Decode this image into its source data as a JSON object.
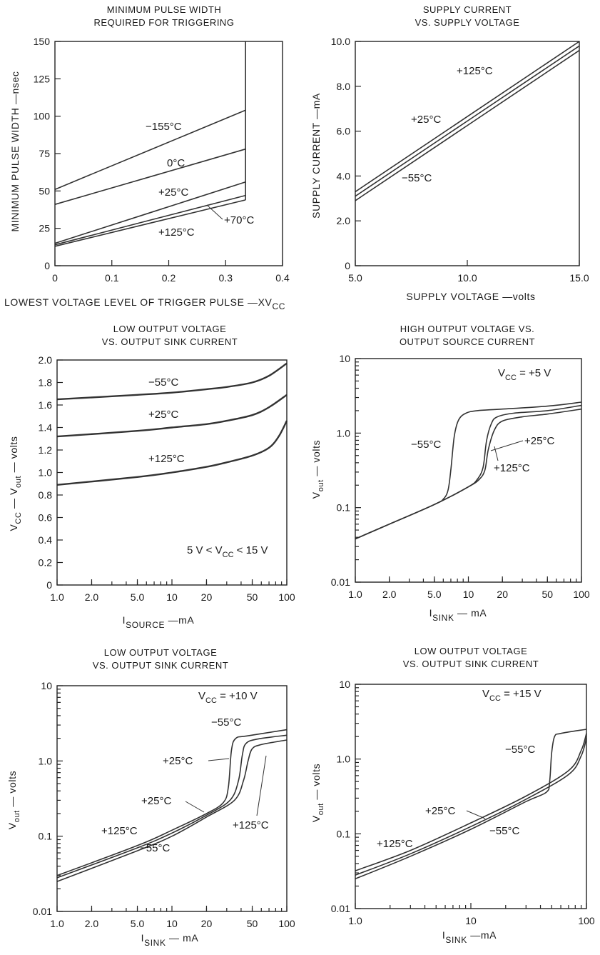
{
  "chart_data": [
    {
      "id": "c1",
      "type": "line",
      "title_lines": [
        "MINIMUM PULSE WIDTH",
        "REQUIRED FOR TRIGGERING"
      ],
      "ylabel": "MINIMUM PULSE WIDTH —nsec",
      "xlabel": {
        "main": "LOWEST VOLTAGE LEVEL OF TRIGGER PULSE —XV",
        "sub": "CC"
      },
      "xscale": "linear",
      "yscale": "linear",
      "xlim": [
        0,
        0.4
      ],
      "ylim": [
        0,
        150
      ],
      "xticks": [
        0,
        0.1,
        0.2,
        0.3,
        0.4
      ],
      "xtick_labels": [
        "0",
        "0.1",
        "0.2",
        "0.3",
        "0.4"
      ],
      "yticks": [
        0,
        25,
        50,
        75,
        100,
        125,
        150
      ],
      "ytick_labels": [
        "0",
        "25",
        "50",
        "75",
        "100",
        "125",
        "150"
      ],
      "cutoff_x": 0.335,
      "series": [
        {
          "name": "−155°C",
          "x": [
            0,
            0.335
          ],
          "y": [
            51,
            104
          ]
        },
        {
          "name": "0°C",
          "x": [
            0,
            0.335
          ],
          "y": [
            41,
            78
          ]
        },
        {
          "name": "+25°C",
          "x": [
            0,
            0.335
          ],
          "y": [
            15,
            56
          ]
        },
        {
          "name": "+70°C",
          "x": [
            0,
            0.335
          ],
          "y": [
            14,
            47
          ]
        },
        {
          "name": "+125°C",
          "x": [
            0,
            0.335
          ],
          "y": [
            13,
            44
          ]
        }
      ]
    },
    {
      "id": "c2",
      "type": "line",
      "title_lines": [
        "SUPPLY CURRENT",
        "VS. SUPPLY VOLTAGE"
      ],
      "ylabel": "SUPPLY CURRENT —mA",
      "xlabel": {
        "main": "SUPPLY VOLTAGE —volts",
        "sub": ""
      },
      "xscale": "linear",
      "yscale": "linear",
      "xlim": [
        5,
        15
      ],
      "ylim": [
        0,
        10
      ],
      "xticks": [
        5,
        10,
        15
      ],
      "xtick_labels": [
        "5.0",
        "10.0",
        "15.0"
      ],
      "yticks": [
        0,
        2,
        4,
        6,
        8,
        10
      ],
      "ytick_labels": [
        "0",
        "2.0",
        "4.0",
        "6.0",
        "8.0",
        "10.0"
      ],
      "series": [
        {
          "name": "+125°C",
          "x": [
            5,
            15
          ],
          "y": [
            3.3,
            10.0
          ]
        },
        {
          "name": "+25°C",
          "x": [
            5,
            15
          ],
          "y": [
            3.1,
            9.8
          ]
        },
        {
          "name": "−55°C",
          "x": [
            5,
            15
          ],
          "y": [
            2.9,
            9.6
          ]
        }
      ]
    },
    {
      "id": "c3",
      "type": "line",
      "title_lines": [
        "LOW OUTPUT VOLTAGE",
        "VS. OUTPUT SINK CURRENT"
      ],
      "ylabel": "V<sub>CC</sub> — V<sub>out</sub> — volts",
      "ylabel_parts": [
        "V",
        "CC",
        " — V",
        "out",
        " — volts"
      ],
      "xlabel": {
        "pre": "I",
        "sub": "SOURCE",
        "post": " —mA"
      },
      "xscale": "log",
      "yscale": "linear",
      "xlim": [
        1,
        100
      ],
      "ylim": [
        0,
        2.0
      ],
      "xticks": [
        1,
        2,
        5,
        10,
        20,
        50,
        100
      ],
      "xtick_labels": [
        "1.0",
        "2.0",
        "5.0",
        "10",
        "20",
        "50",
        "100"
      ],
      "yticks": [
        0,
        0.2,
        0.4,
        0.6,
        0.8,
        1.0,
        1.2,
        1.4,
        1.6,
        1.8,
        2.0
      ],
      "ytick_labels": [
        "0",
        "0.2",
        "0.4",
        "0.6",
        "0.8",
        "1.0",
        "1.2",
        "1.4",
        "1.6",
        "1.8",
        "2.0"
      ],
      "note": {
        "pre": "5 V < V",
        "sub": "CC",
        "post": " < 15 V"
      },
      "series": [
        {
          "name": "−55°C",
          "x": [
            1,
            5,
            10,
            20,
            30,
            50,
            70,
            100
          ],
          "y": [
            1.65,
            1.69,
            1.71,
            1.74,
            1.76,
            1.8,
            1.86,
            1.97
          ]
        },
        {
          "name": "+25°C",
          "x": [
            1,
            5,
            10,
            20,
            30,
            50,
            70,
            100
          ],
          "y": [
            1.32,
            1.37,
            1.4,
            1.43,
            1.46,
            1.51,
            1.58,
            1.69
          ]
        },
        {
          "name": "+125°C",
          "x": [
            1,
            5,
            10,
            20,
            30,
            50,
            70,
            85,
            100
          ],
          "y": [
            0.89,
            0.96,
            1.0,
            1.05,
            1.09,
            1.15,
            1.22,
            1.32,
            1.46
          ]
        }
      ]
    },
    {
      "id": "c4",
      "type": "line",
      "title_lines": [
        "HIGH OUTPUT VOLTAGE VS.",
        "OUTPUT SOURCE CURRENT"
      ],
      "ylabel": "V<sub>out</sub> — volts",
      "ylabel_parts": [
        "V",
        "out",
        " — volts"
      ],
      "xlabel": {
        "pre": "I",
        "sub": "SINK",
        "post": " — mA"
      },
      "xscale": "log",
      "yscale": "log",
      "xlim": [
        1,
        100
      ],
      "ylim": [
        0.01,
        10
      ],
      "xticks": [
        1,
        2,
        5,
        10,
        20,
        50,
        100
      ],
      "xtick_labels": [
        "1.0",
        "2.0",
        "5.0",
        "10",
        "20",
        "50",
        "100"
      ],
      "yticks": [
        0.01,
        0.1,
        1,
        10
      ],
      "ytick_labels": [
        "0.01",
        "0.1",
        "1.0",
        "10"
      ],
      "note": {
        "pre": "V",
        "sub": "CC",
        "post": " = +5 V"
      },
      "series": [
        {
          "name": "−55°C",
          "x": [
            1,
            2,
            5,
            6,
            6.6,
            7,
            7.5,
            8.2,
            9.5,
            12,
            20,
            50,
            100
          ],
          "y": [
            0.038,
            0.06,
            0.11,
            0.13,
            0.17,
            0.32,
            0.9,
            1.5,
            1.85,
            2.0,
            2.1,
            2.3,
            2.6
          ]
        },
        {
          "name": "+25°C",
          "x": [
            1,
            2,
            5,
            10,
            12,
            13.5,
            14.5,
            16,
            18,
            25,
            50,
            100
          ],
          "y": [
            0.038,
            0.06,
            0.11,
            0.19,
            0.24,
            0.35,
            0.8,
            1.35,
            1.65,
            1.85,
            2.0,
            2.35
          ]
        },
        {
          "name": "+125°C",
          "x": [
            1,
            2,
            5,
            10,
            12.5,
            14,
            15,
            17,
            20,
            30,
            50,
            100
          ],
          "y": [
            0.038,
            0.06,
            0.11,
            0.19,
            0.24,
            0.32,
            0.6,
            1.1,
            1.45,
            1.65,
            1.8,
            2.1
          ]
        }
      ]
    },
    {
      "id": "c5",
      "type": "line",
      "title_lines": [
        "LOW OUTPUT VOLTAGE",
        "VS. OUTPUT SINK CURRENT"
      ],
      "ylabel": "V<sub>out</sub> — volts",
      "ylabel_parts": [
        "V",
        "out",
        " — volts"
      ],
      "xlabel": {
        "pre": "I",
        "sub": "SINK",
        "post": " — mA"
      },
      "xscale": "log",
      "yscale": "log",
      "xlim": [
        1,
        100
      ],
      "ylim": [
        0.01,
        10
      ],
      "xticks": [
        1,
        2,
        5,
        10,
        20,
        50,
        100
      ],
      "xtick_labels": [
        "1.0",
        "2.0",
        "5.0",
        "10",
        "20",
        "50",
        "100"
      ],
      "yticks": [
        0.01,
        0.1,
        1,
        10
      ],
      "ytick_labels": [
        "0.01",
        "0.1",
        "1.0",
        "10"
      ],
      "note": {
        "pre": "V",
        "sub": "CC",
        "post": " = +10 V"
      },
      "series": [
        {
          "name": "−55°C",
          "x": [
            1,
            5,
            10,
            20,
            28,
            31,
            33,
            36,
            45,
            100
          ],
          "y": [
            0.03,
            0.075,
            0.12,
            0.2,
            0.28,
            0.45,
            1.4,
            2.0,
            2.15,
            2.6
          ]
        },
        {
          "name": "+25°C",
          "x": [
            1,
            5,
            10,
            20,
            32,
            38,
            41,
            44,
            55,
            100
          ],
          "y": [
            0.028,
            0.07,
            0.11,
            0.19,
            0.3,
            0.55,
            1.2,
            1.7,
            1.95,
            2.2
          ]
        },
        {
          "name": "+125°C",
          "x": [
            1,
            5,
            10,
            20,
            35,
            42,
            46,
            50,
            60,
            100
          ],
          "y": [
            0.025,
            0.064,
            0.1,
            0.18,
            0.3,
            0.55,
            1.0,
            1.45,
            1.65,
            1.9
          ]
        }
      ],
      "extra_labels": [
        "+25°C",
        "+125°C",
        "−55°C"
      ]
    },
    {
      "id": "c6",
      "type": "line",
      "title_lines": [
        "LOW OUTPUT VOLTAGE",
        "VS. OUTPUT SINK CURRENT"
      ],
      "ylabel": "V<sub>out</sub> — volts",
      "ylabel_parts": [
        "V",
        "out",
        " — volts"
      ],
      "xlabel": {
        "pre": "I",
        "sub": "SINK",
        "post": " —mA"
      },
      "xscale": "log",
      "yscale": "log",
      "xlim": [
        1,
        100
      ],
      "ylim": [
        0.01,
        10
      ],
      "xticks": [
        1,
        10,
        100
      ],
      "xtick_labels": [
        "1.0",
        "10",
        "100"
      ],
      "yticks": [
        0.01,
        0.1,
        1,
        10
      ],
      "ytick_labels": [
        "0.01",
        "0.1",
        "1.0",
        "10"
      ],
      "note": {
        "pre": "V",
        "sub": "CC",
        "post": " = +15 V"
      },
      "series": [
        {
          "name": "+125°C",
          "x": [
            1,
            3,
            10,
            30,
            70,
            90,
            100
          ],
          "y": [
            0.032,
            0.06,
            0.14,
            0.32,
            0.7,
            1.3,
            2.2
          ]
        },
        {
          "name": "+25°C",
          "x": [
            1,
            3,
            10,
            30,
            70,
            90,
            100
          ],
          "y": [
            0.028,
            0.054,
            0.125,
            0.29,
            0.62,
            1.1,
            1.9
          ]
        },
        {
          "name": "−55°C",
          "x": [
            1,
            3,
            10,
            30,
            45,
            48,
            50,
            53,
            60,
            100
          ],
          "y": [
            0.025,
            0.05,
            0.115,
            0.27,
            0.36,
            0.5,
            1.2,
            2.0,
            2.2,
            2.5
          ]
        }
      ]
    }
  ]
}
